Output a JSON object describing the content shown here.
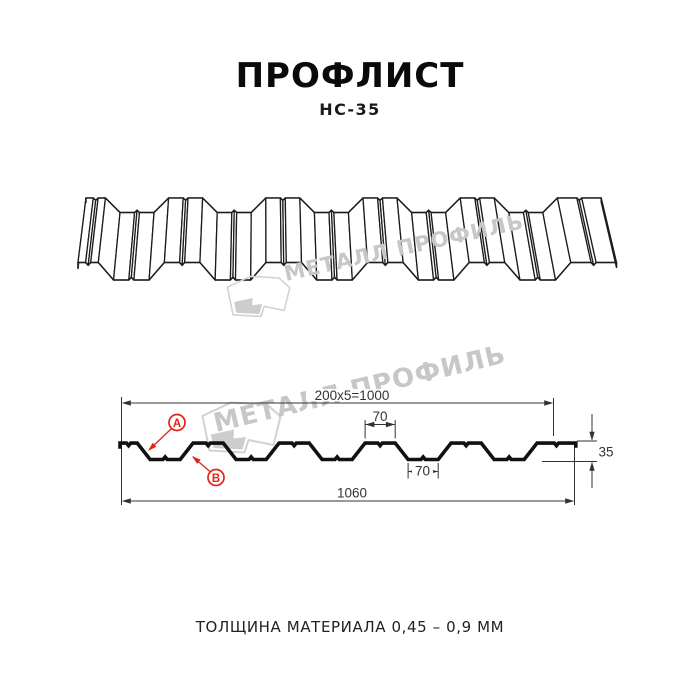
{
  "page": {
    "title": "ПРОФЛИСТ",
    "subtitle": "НС-35",
    "footer": "ТОЛЩИНА МАТЕРИАЛА 0,45 – 0,9 ММ"
  },
  "watermark": {
    "text": "МЕТАЛЛ ПРОФИЛЬ"
  },
  "dimensions": {
    "top_width": "200x5=1000",
    "rib_top": "70",
    "rib_bottom": "70",
    "height": "35",
    "total_width": "1060"
  },
  "labels": {
    "a": "А",
    "b": "В"
  },
  "profile": {
    "name": "НС-35",
    "period_mm": 200,
    "crest_mm": 70,
    "valley_mm": 70,
    "height_mm": 35,
    "total_mm": 1060,
    "modules": 5
  },
  "colors": {
    "line": "#1c1c1c",
    "thick": "#111111",
    "dim": "#333333",
    "red": "#e2231a",
    "watermark_text": "#c7c7c7",
    "watermark_logo": "#d2d2d2",
    "watermark_fill": "#cdcdcd"
  }
}
